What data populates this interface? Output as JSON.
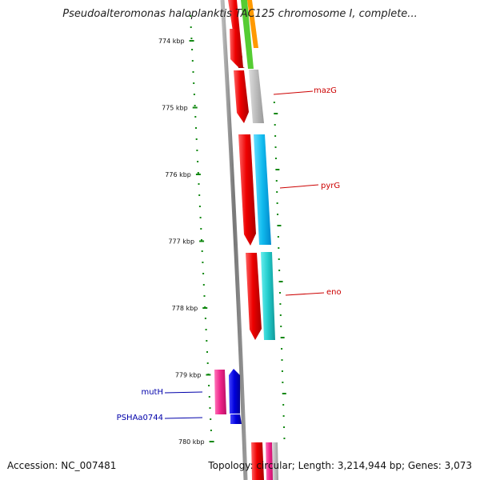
{
  "header": {
    "title": "Pseudoalteromonas haloplanktis TAC125 chromosome I, complete..."
  },
  "footer": {
    "accession": "Accession: NC_007481",
    "stats": "Topology: circular; Length: 3,214,944 bp; Genes: 3,073"
  },
  "ruler": {
    "ticks": [
      {
        "label": "774 kbp",
        "kbp": 774
      },
      {
        "label": "775 kbp",
        "kbp": 775
      },
      {
        "label": "776 kbp",
        "kbp": 776
      },
      {
        "label": "777 kbp",
        "kbp": 777
      },
      {
        "label": "778 kbp",
        "kbp": 778
      },
      {
        "label": "779 kbp",
        "kbp": 779
      },
      {
        "label": "780 kbp",
        "kbp": 780
      }
    ]
  },
  "genes": [
    {
      "name": "mazG",
      "color": "#cc0000"
    },
    {
      "name": "pyrG",
      "color": "#cc0000"
    },
    {
      "name": "eno",
      "color": "#cc0000"
    },
    {
      "name": "mutH",
      "color": "#0000aa"
    },
    {
      "name": "PSHAa0744",
      "color": "#0000aa"
    }
  ],
  "colors": {
    "cds_red": "#ee0000",
    "gray": "#aaaaaa",
    "cyan_blue": "#11bbee",
    "teal": "#22cccc",
    "magenta": "#ee2288",
    "blue": "#0000dd",
    "green_gc": "#118811",
    "orange": "#ff9900",
    "light_green": "#55cc33"
  }
}
